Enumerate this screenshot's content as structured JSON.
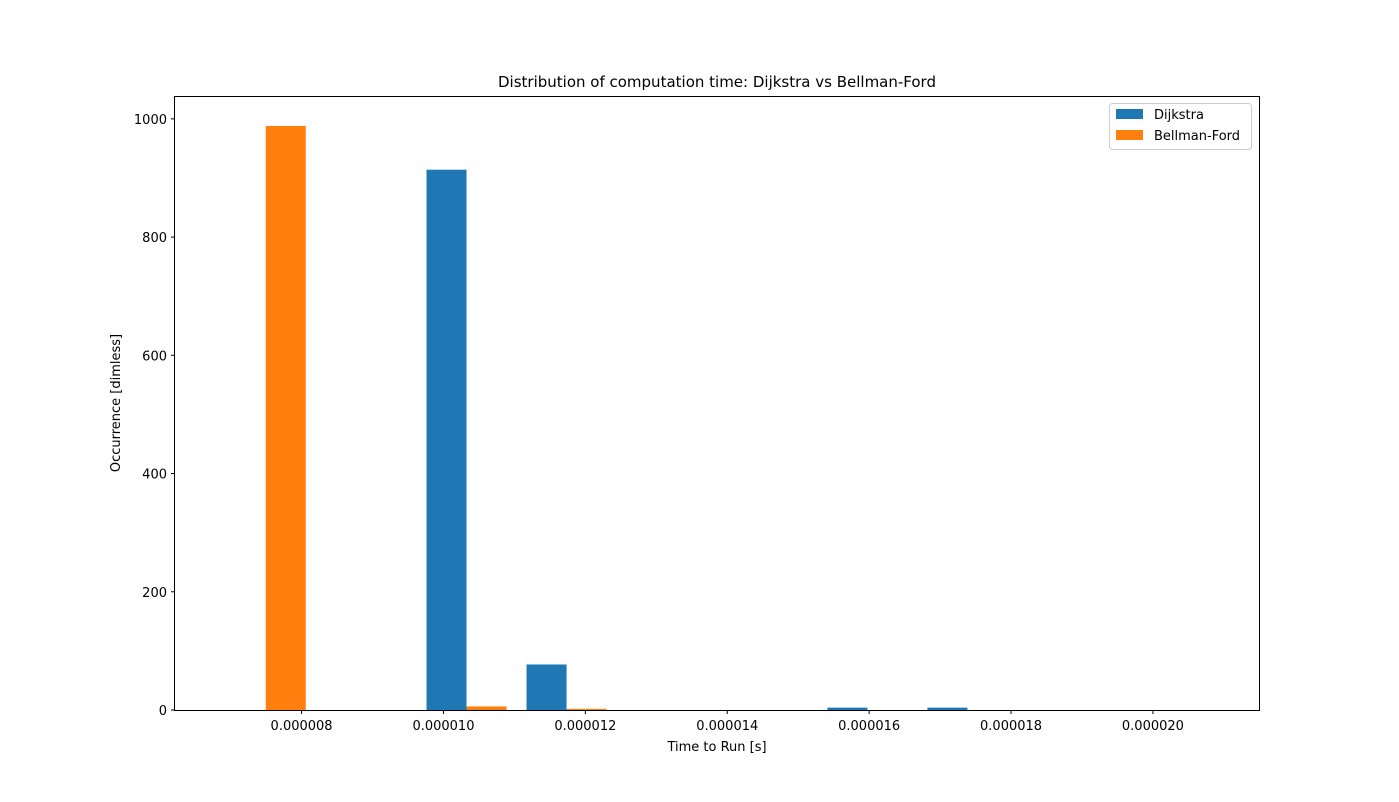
{
  "chart_data": {
    "type": "bar",
    "title": "Distribution of computation time: Dijkstra vs Bellman-Ford",
    "xlabel": "Time to Run [s]",
    "ylabel": "Occurrence [dimless]",
    "xlim": [
      6.216e-06,
      2.1495e-05
    ],
    "ylim": [
      0,
      1037
    ],
    "x_ticks": [
      8e-06,
      1e-05,
      1.2e-05,
      1.4e-05,
      1.6e-05,
      1.8e-05,
      2e-05
    ],
    "x_tick_labels": [
      "0.000008",
      "0.000010",
      "0.000012",
      "0.000014",
      "0.000016",
      "0.000018",
      "0.000020"
    ],
    "y_ticks": [
      0,
      200,
      400,
      600,
      800,
      1000
    ],
    "y_tick_labels": [
      "0",
      "200",
      "400",
      "600",
      "800",
      "1000"
    ],
    "bin_edges": [
      6.79e-06,
      8.2e-06,
      9.62e-06,
      1.103e-05,
      1.244e-05,
      1.386e-05,
      1.527e-05,
      1.668e-05,
      1.809e-05,
      1.951e-05,
      2.092e-05
    ],
    "series": [
      {
        "name": "Dijkstra",
        "color": "#1f77b4",
        "values": [
          0,
          0,
          914,
          77,
          0,
          0,
          4,
          4,
          0,
          0
        ]
      },
      {
        "name": "Bellman-Ford",
        "color": "#ff7f0e",
        "values": [
          988,
          0,
          6,
          2,
          0,
          0,
          0,
          0,
          0,
          0
        ]
      }
    ],
    "grid": false,
    "legend_position": "top-right"
  }
}
